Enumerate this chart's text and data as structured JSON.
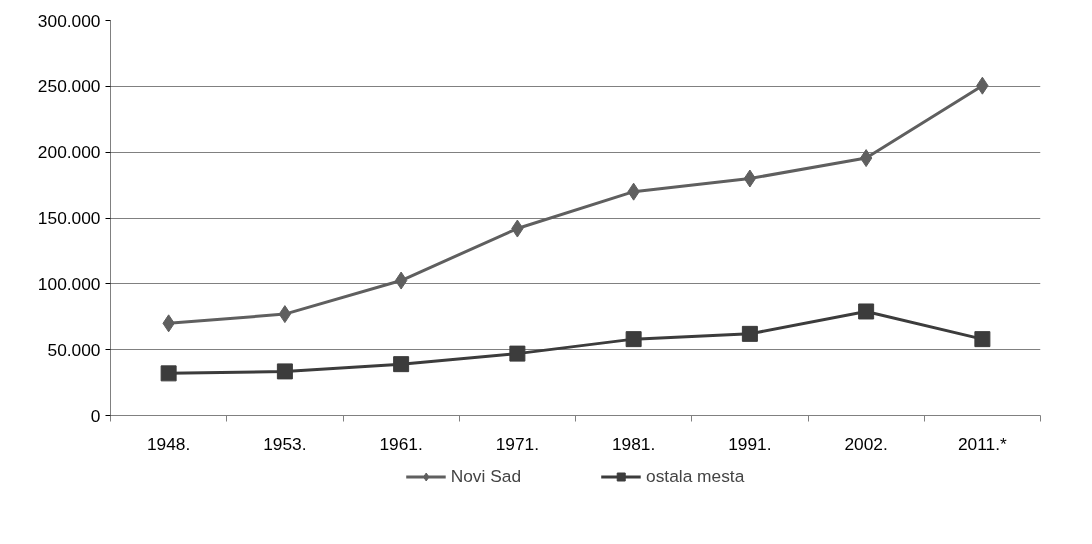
{
  "chart_data": {
    "type": "line",
    "categories": [
      "1948.",
      "1953.",
      "1961.",
      "1971.",
      "1981.",
      "1991.",
      "2002.",
      "2011.*"
    ],
    "series": [
      {
        "name": "Novi Sad",
        "color": "#5f5f5f",
        "marker": "diamond",
        "values": [
          70000,
          77000,
          102500,
          142000,
          170000,
          180000,
          195500,
          250500
        ]
      },
      {
        "name": "ostala mesta",
        "color": "#3c3c3c",
        "marker": "square",
        "values": [
          32000,
          33500,
          39000,
          47000,
          58000,
          62000,
          79000,
          58000
        ]
      }
    ],
    "ylim": [
      0,
      300000
    ],
    "yticks": [
      {
        "value": 0,
        "label": "0"
      },
      {
        "value": 50000,
        "label": "50.000"
      },
      {
        "value": 100000,
        "label": "100.000"
      },
      {
        "value": 150000,
        "label": "150.000"
      },
      {
        "value": 200000,
        "label": "200.000"
      },
      {
        "value": 250000,
        "label": "250.000"
      },
      {
        "value": 300000,
        "label": "300.000"
      }
    ],
    "grid": "y",
    "legend": "bottom",
    "line_style": "solid"
  }
}
